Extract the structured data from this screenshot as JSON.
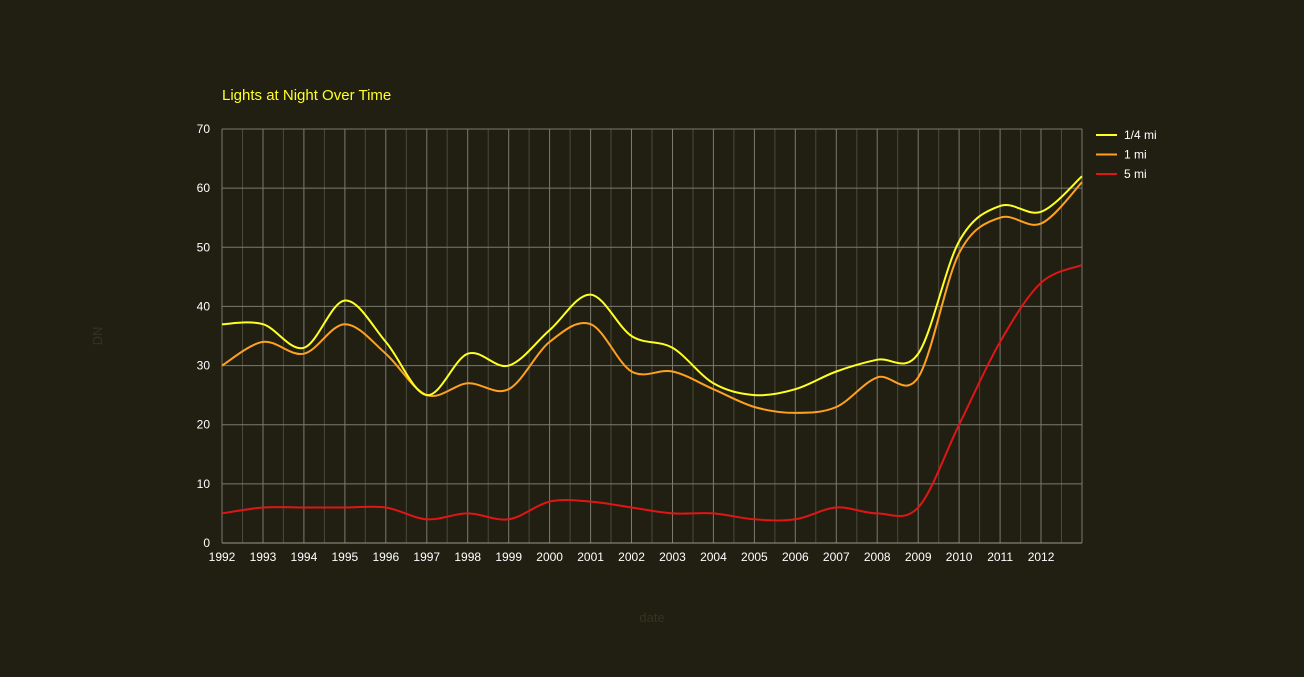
{
  "chart_data": {
    "type": "line",
    "title": "Lights at Night Over Time",
    "xlabel": "date",
    "ylabel": "DN",
    "x": [
      1992,
      1993,
      1994,
      1995,
      1996,
      1997,
      1998,
      1999,
      2000,
      2001,
      2002,
      2003,
      2004,
      2005,
      2006,
      2007,
      2008,
      2009,
      2010,
      2011,
      2012,
      2013
    ],
    "xticks": [
      "1992",
      "1993",
      "1994",
      "1995",
      "1996",
      "1997",
      "1998",
      "1999",
      "2000",
      "2001",
      "2002",
      "2003",
      "2004",
      "2005",
      "2006",
      "2007",
      "2008",
      "2009",
      "2010",
      "2011",
      "2012"
    ],
    "yticks": [
      "0",
      "10",
      "20",
      "30",
      "40",
      "50",
      "60",
      "70"
    ],
    "ylim": [
      0,
      70
    ],
    "xlim": [
      1992,
      2013
    ],
    "grid": true,
    "legend_position": "top-right",
    "series": [
      {
        "name": "1/4 mi",
        "color": "#ffff26",
        "values": [
          37,
          37,
          33,
          41,
          34,
          25,
          32,
          30,
          36,
          42,
          35,
          33,
          27,
          25,
          26,
          29,
          31,
          32,
          51,
          57,
          56,
          62
        ]
      },
      {
        "name": "1 mi",
        "color": "#ffa11f",
        "values": [
          30,
          34,
          32,
          37,
          32,
          25,
          27,
          26,
          34,
          37,
          29,
          29,
          26,
          23,
          22,
          23,
          28,
          28,
          49,
          55,
          54,
          61
        ]
      },
      {
        "name": "5 mi",
        "color": "#e01616",
        "values": [
          5,
          6,
          6,
          6,
          6,
          4,
          5,
          4,
          7,
          7,
          6,
          5,
          5,
          4,
          4,
          6,
          5,
          6,
          20,
          34,
          44,
          47
        ]
      }
    ]
  },
  "colors": {
    "background": "#201f12",
    "title": "#ffff26",
    "text": "#ffffff",
    "grid_major": "#7a7a70",
    "grid_minor": "#4a4a3c",
    "axis_title": "#35341f"
  }
}
